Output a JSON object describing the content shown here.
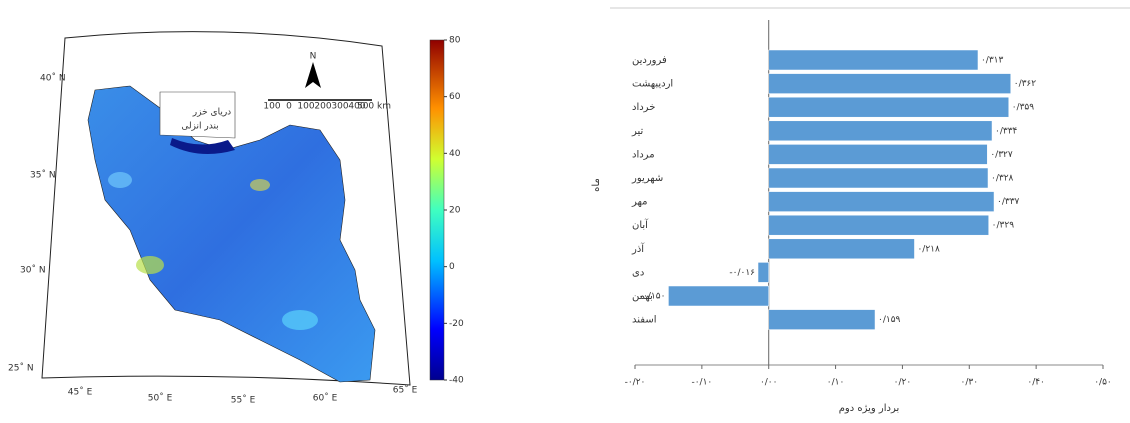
{
  "chart_data": [
    {
      "type": "map",
      "colorbar": {
        "lim": [
          -40,
          80
        ],
        "ticks": [
          80,
          60,
          40,
          20,
          0,
          -20,
          -40
        ]
      },
      "lat_labels": [
        "40˚ N",
        "35˚ N",
        "30˚ N",
        "25˚ N"
      ],
      "lon_labels": [
        "45˚ E",
        "50˚ E",
        "55˚ E",
        "60˚ E",
        "65˚ E"
      ],
      "scale_labels": [
        "100",
        "0",
        "100",
        "200",
        "300",
        "400",
        "500 km"
      ],
      "annotations": [
        "دریای خزر",
        "بندر انزلی"
      ],
      "north": "N"
    },
    {
      "type": "barh",
      "categories": [
        "فروردین",
        "اردیبهشت",
        "خرداد",
        "تیر",
        "مرداد",
        "شهریور",
        "مهر",
        "آبان",
        "آذر",
        "دی",
        "بهمن",
        "اسفند"
      ],
      "values": [
        0.313,
        0.362,
        0.359,
        0.334,
        0.327,
        0.328,
        0.337,
        0.329,
        0.218,
        -0.016,
        -0.15,
        0.159
      ],
      "value_labels": [
        "۰/۳۱۳",
        "۰/۳۶۲",
        "۰/۳۵۹",
        "۰/۳۳۴",
        "۰/۳۲۷",
        "۰/۳۲۸",
        "۰/۳۳۷",
        "۰/۳۲۹",
        "۰/۲۱۸",
        "-۰/۰۱۶",
        "-۰/۱۵۰",
        "۰/۱۵۹"
      ],
      "color": "#5b9bd5",
      "xlim": [
        -0.2,
        0.5
      ],
      "xticks": [
        {
          "value": -0.2,
          "label": "-۰/۲۰"
        },
        {
          "value": -0.1,
          "label": "-۰/۱۰"
        },
        {
          "value": 0,
          "label": "۰/۰۰"
        },
        {
          "value": 0.1,
          "label": "۰/۱۰"
        },
        {
          "value": 0.2,
          "label": "۰/۲۰"
        },
        {
          "value": 0.3,
          "label": "۰/۳۰"
        },
        {
          "value": 0.4,
          "label": "۰/۴۰"
        },
        {
          "value": 0.5,
          "label": "۰/۵۰"
        }
      ],
      "xlabel": "بردار ویژه دوم",
      "ylabel": "ماه"
    }
  ]
}
